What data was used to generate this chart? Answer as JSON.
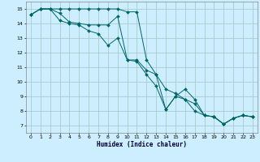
{
  "xlabel": "Humidex (Indice chaleur)",
  "background_color": "#cceeff",
  "grid_color": "#aacccc",
  "line_color": "#006666",
  "xlim": [
    -0.5,
    23.5
  ],
  "ylim": [
    6.5,
    15.5
  ],
  "xticks": [
    0,
    1,
    2,
    3,
    4,
    5,
    6,
    7,
    8,
    9,
    10,
    11,
    12,
    13,
    14,
    15,
    16,
    17,
    18,
    19,
    20,
    21,
    22,
    23
  ],
  "yticks": [
    7,
    8,
    9,
    10,
    11,
    12,
    13,
    14,
    15
  ],
  "series": [
    {
      "x": [
        0,
        1,
        2,
        3,
        4,
        5,
        6,
        7,
        8,
        9,
        10,
        11,
        12,
        13,
        14,
        15,
        16,
        17,
        18,
        19,
        20,
        21,
        22,
        23
      ],
      "y": [
        14.6,
        15.0,
        15.0,
        15.0,
        15.0,
        15.0,
        15.0,
        15.0,
        15.0,
        15.0,
        14.8,
        14.8,
        11.5,
        10.5,
        9.5,
        9.2,
        8.8,
        8.5,
        7.7,
        7.6,
        7.1,
        7.5,
        7.7,
        7.6
      ]
    },
    {
      "x": [
        0,
        1,
        2,
        3,
        4,
        5,
        6,
        7,
        8,
        9,
        10,
        11,
        12,
        13,
        14,
        15,
        16,
        17,
        18,
        19,
        20,
        21,
        22,
        23
      ],
      "y": [
        14.6,
        15.0,
        15.0,
        14.7,
        14.1,
        14.0,
        13.9,
        13.9,
        13.9,
        14.5,
        11.5,
        11.5,
        10.8,
        10.5,
        8.1,
        9.0,
        9.5,
        8.8,
        7.7,
        7.6,
        7.1,
        7.5,
        7.7,
        7.6
      ]
    },
    {
      "x": [
        0,
        1,
        2,
        3,
        4,
        5,
        6,
        7,
        8,
        9,
        10,
        11,
        12,
        13,
        14,
        15,
        16,
        17,
        18,
        19,
        20,
        21,
        22,
        23
      ],
      "y": [
        14.6,
        15.0,
        15.0,
        14.2,
        14.0,
        13.9,
        13.5,
        13.3,
        12.5,
        13.0,
        11.5,
        11.4,
        10.5,
        9.7,
        8.1,
        9.0,
        8.8,
        8.0,
        7.7,
        7.6,
        7.1,
        7.5,
        7.7,
        7.6
      ]
    }
  ]
}
